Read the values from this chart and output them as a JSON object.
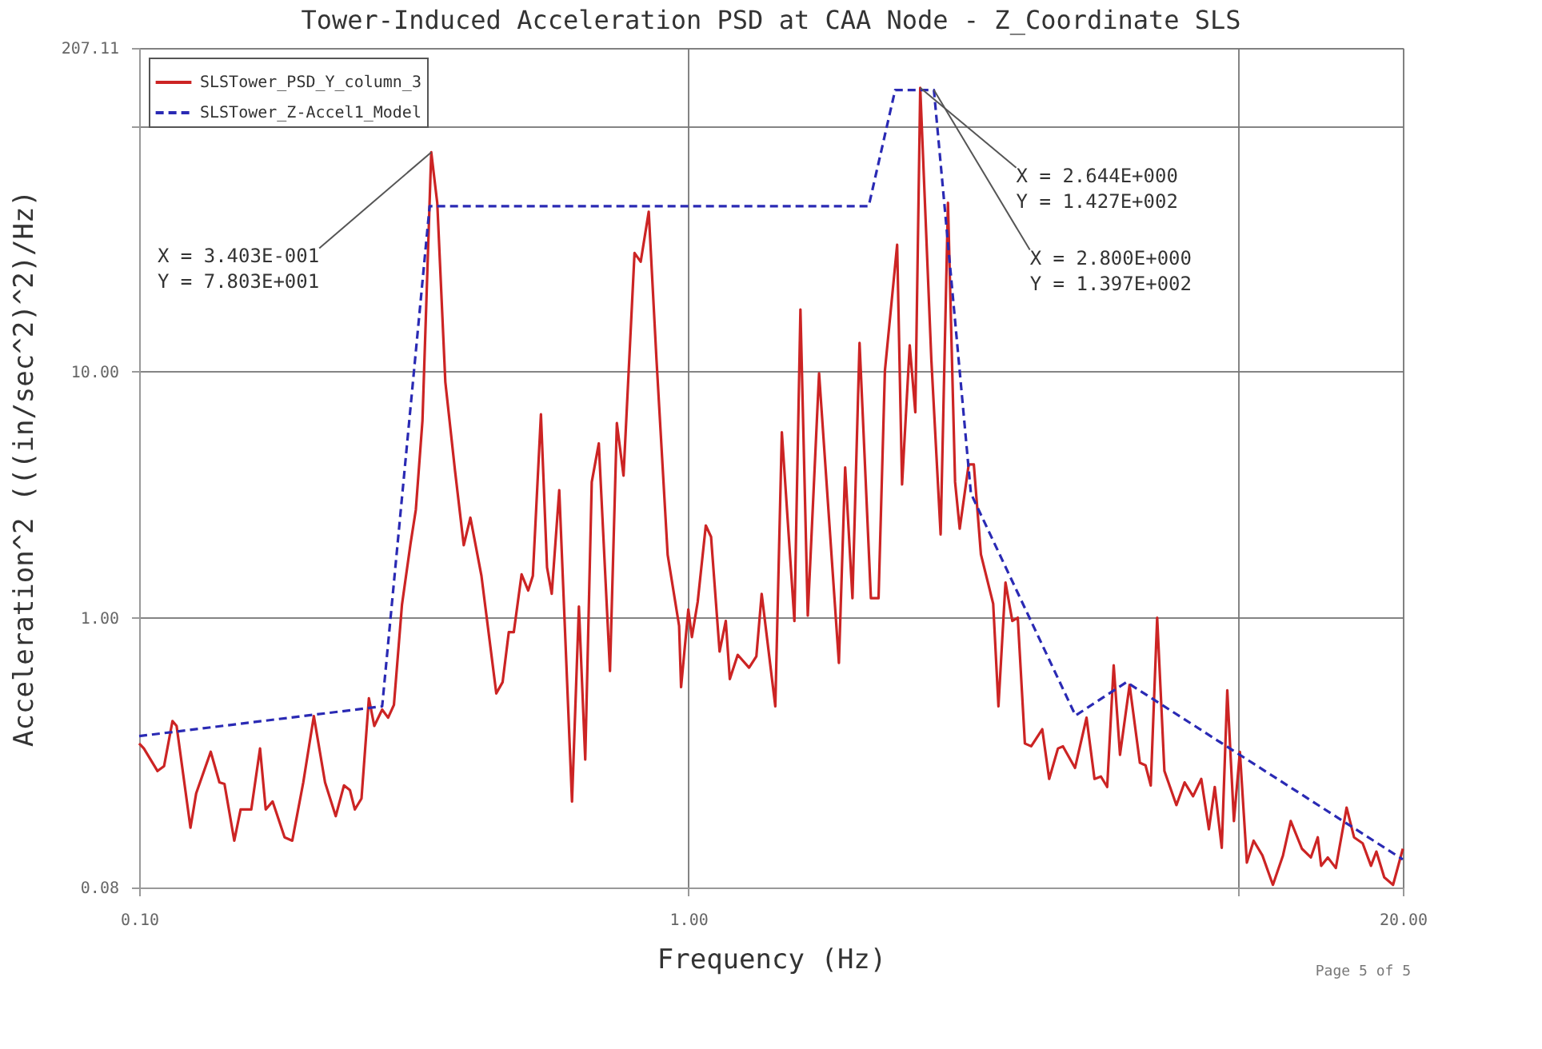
{
  "chart_data": {
    "type": "line",
    "title": "Tower-Induced Acceleration PSD at CAA Node - Z_Coordinate SLS",
    "xlabel": "Frequency (Hz)",
    "ylabel": "Acceleration^2 (((in/sec^2)^2)/Hz)",
    "log": "xy",
    "grid": true,
    "legend": "top left",
    "marker": "none",
    "xlim": [
      0.1,
      20
    ],
    "xticks": [
      {
        "value": 0.1,
        "label": "0.10"
      },
      {
        "value": 1,
        "label": "1.00"
      },
      {
        "value": 10,
        "label": null
      },
      {
        "value": 20,
        "label": "20.00"
      }
    ],
    "ylim": [
      0.08,
      207.11
    ],
    "yticks": [
      {
        "value": 0.08,
        "label": "0.08"
      },
      {
        "value": 1,
        "label": "1.00"
      },
      {
        "value": 10,
        "label": "10.00"
      },
      {
        "value": 100,
        "label": null
      },
      {
        "value": 207.11,
        "label": "207.11"
      }
    ],
    "series": [
      {
        "name": "SLSTower_PSD_Y_column_3",
        "color": "#cc2424",
        "line_style": "solid",
        "x": [
          0.1,
          0.102,
          0.108,
          0.111,
          0.115,
          0.117,
          0.124,
          0.127,
          0.135,
          0.14,
          0.143,
          0.149,
          0.153,
          0.16,
          0.166,
          0.17,
          0.175,
          0.184,
          0.19,
          0.199,
          0.208,
          0.218,
          0.228,
          0.236,
          0.242,
          0.247,
          0.254,
          0.262,
          0.268,
          0.277,
          0.284,
          0.291,
          0.301,
          0.312,
          0.319,
          0.328,
          0.3403,
          0.349,
          0.361,
          0.376,
          0.39,
          0.401,
          0.42,
          0.447,
          0.459,
          0.471,
          0.481,
          0.497,
          0.511,
          0.521,
          0.539,
          0.553,
          0.564,
          0.582,
          0.614,
          0.632,
          0.649,
          0.667,
          0.687,
          0.72,
          0.741,
          0.762,
          0.798,
          0.819,
          0.847,
          0.875,
          0.917,
          0.962,
          0.97,
          1.0,
          1.015,
          1.04,
          1.076,
          1.1,
          1.14,
          1.17,
          1.19,
          1.23,
          1.29,
          1.33,
          1.36,
          1.44,
          1.48,
          1.56,
          1.6,
          1.65,
          1.73,
          1.88,
          1.93,
          1.99,
          2.05,
          2.15,
          2.22,
          2.28,
          2.4,
          2.45,
          2.53,
          2.59,
          2.644,
          2.77,
          2.88,
          2.97,
          3.06,
          3.12,
          3.24,
          3.31,
          3.41,
          3.59,
          3.67,
          3.78,
          3.89,
          3.98,
          4.1,
          4.21,
          4.41,
          4.54,
          4.71,
          4.81,
          5.06,
          5.31,
          5.49,
          5.64,
          5.79,
          5.95,
          6.11,
          6.36,
          6.64,
          6.8,
          6.95,
          7.14,
          7.36,
          7.74,
          8.01,
          8.3,
          8.59,
          8.87,
          9.09,
          9.36,
          9.58,
          9.85,
          10.1,
          10.4,
          10.7,
          11.1,
          11.6,
          12.1,
          12.5,
          13.1,
          13.6,
          14.0,
          14.2,
          14.6,
          15.1,
          15.8,
          16.3,
          16.9,
          17.5,
          17.9,
          18.5,
          19.2,
          20.0
        ],
        "values": [
          0.308,
          0.294,
          0.238,
          0.249,
          0.38,
          0.363,
          0.14,
          0.193,
          0.285,
          0.214,
          0.211,
          0.124,
          0.166,
          0.166,
          0.294,
          0.166,
          0.179,
          0.128,
          0.124,
          0.214,
          0.398,
          0.214,
          0.156,
          0.208,
          0.199,
          0.166,
          0.184,
          0.47,
          0.363,
          0.423,
          0.392,
          0.442,
          1.13,
          2.0,
          2.75,
          6.32,
          78.03,
          48.5,
          9.08,
          3.95,
          1.97,
          2.55,
          1.48,
          0.492,
          0.547,
          0.873,
          0.873,
          1.5,
          1.29,
          1.48,
          6.71,
          1.6,
          1.25,
          3.3,
          0.179,
          1.11,
          0.265,
          3.56,
          5.11,
          0.607,
          6.18,
          3.78,
          30.4,
          28.0,
          44.7,
          11.2,
          1.8,
          0.927,
          0.522,
          1.08,
          0.834,
          1.16,
          2.37,
          2.13,
          0.728,
          0.97,
          0.563,
          0.706,
          0.626,
          0.696,
          1.25,
          0.436,
          5.68,
          0.97,
          17.9,
          1.02,
          9.86,
          0.655,
          4.08,
          1.2,
          13.1,
          1.2,
          1.2,
          10.1,
          32.8,
          3.48,
          12.8,
          6.84,
          142.7,
          11.2,
          2.18,
          48.6,
          3.56,
          2.3,
          4.2,
          4.2,
          1.81,
          1.14,
          0.436,
          1.39,
          0.97,
          1.0,
          0.308,
          0.3,
          0.352,
          0.221,
          0.294,
          0.3,
          0.245,
          0.392,
          0.221,
          0.226,
          0.205,
          0.64,
          0.277,
          0.533,
          0.257,
          0.251,
          0.208,
          1.0,
          0.238,
          0.173,
          0.214,
          0.188,
          0.221,
          0.138,
          0.205,
          0.116,
          0.507,
          0.149,
          0.285,
          0.101,
          0.124,
          0.108,
          0.082,
          0.108,
          0.149,
          0.115,
          0.106,
          0.128,
          0.098,
          0.106,
          0.096,
          0.169,
          0.128,
          0.121,
          0.098,
          0.112,
          0.088,
          0.082,
          0.115
        ]
      },
      {
        "name": "SLSTower_Z-Accel1_Model",
        "color": "#2a2ab4",
        "line_style": "dashed",
        "x": [
          0.1,
          0.277,
          0.338,
          2.13,
          2.38,
          2.8,
          3.27,
          5.07,
          6.28,
          20
        ],
        "values": [
          0.33,
          0.436,
          47.1,
          47.1,
          139.7,
          139.7,
          3.2,
          0.4,
          0.547,
          0.104
        ]
      }
    ],
    "annotations": [
      {
        "text": "X =  3.403E-001\nY =  7.803E+001",
        "x": 0.3403,
        "y": 78.03
      },
      {
        "text": "X =  2.644E+000\nY =  1.427E+002",
        "x": 2.644,
        "y": 142.7
      },
      {
        "text": "X =  2.800E+000\nY =  1.397E+002",
        "x": 2.8,
        "y": 139.7
      },
      "Page 5 of 5"
    ]
  }
}
